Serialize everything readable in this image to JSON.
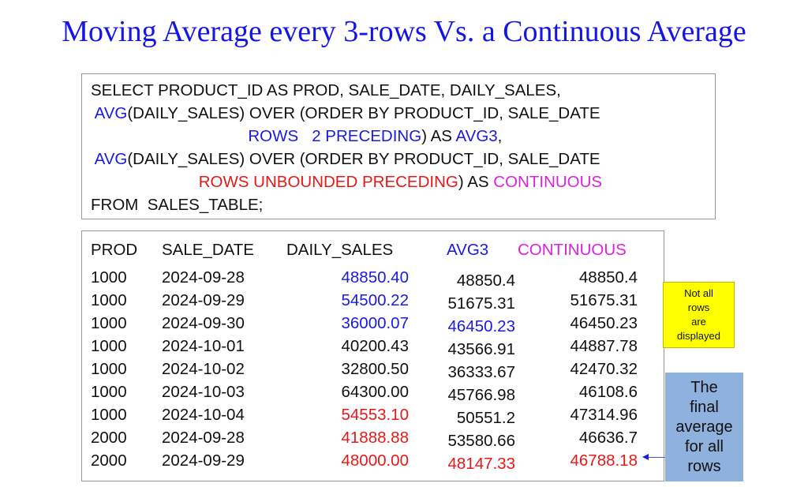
{
  "title": "Moving Average every 3-rows Vs. a Continuous Average",
  "sql": [
    [
      {
        "t": "SELECT PRODUCT_ID AS PROD, SALE_DATE, DAILY_SALES,",
        "c": "black"
      }
    ],
    [
      {
        "t": " AVG",
        "c": "blue"
      },
      {
        "t": "(DAILY_SALES) OVER (ORDER BY PRODUCT_ID, SALE_DATE",
        "c": "black"
      }
    ],
    [
      {
        "t": "                                   ROWS   2 PRECEDING",
        "c": "blue"
      },
      {
        "t": ") AS ",
        "c": "black"
      },
      {
        "t": "AVG3",
        "c": "blue"
      },
      {
        "t": ",",
        "c": "black"
      }
    ],
    [
      {
        "t": " AVG",
        "c": "blue"
      },
      {
        "t": "(DAILY_SALES) OVER (ORDER BY PRODUCT_ID, SALE_DATE",
        "c": "black"
      }
    ],
    [
      {
        "t": "                        ROWS UNBOUNDED PRECEDING",
        "c": "red"
      },
      {
        "t": ") AS ",
        "c": "black"
      },
      {
        "t": "CONTINUOUS",
        "c": "mag"
      }
    ],
    [
      {
        "t": "FROM  SALES_TABLE;",
        "c": "black"
      }
    ]
  ],
  "table": {
    "headers": [
      {
        "t": "PROD",
        "c": "black"
      },
      {
        "t": "SALE_DATE",
        "c": "black"
      },
      {
        "t": "DAILY_SALES",
        "c": "black"
      },
      {
        "t": "AVG3",
        "c": "blue"
      },
      {
        "t": "CONTINUOUS",
        "c": "mag"
      }
    ],
    "rows": [
      {
        "prod": "1000",
        "date": "2024-09-28",
        "sales": "48850.40",
        "sc": "blue",
        "avg3": "48850.4",
        "ac": "black",
        "cont": "48850.4",
        "cc": "black"
      },
      {
        "prod": "1000",
        "date": "2024-09-29",
        "sales": "54500.22",
        "sc": "blue",
        "avg3": "51675.31",
        "ac": "black",
        "cont": "51675.31",
        "cc": "black"
      },
      {
        "prod": "1000",
        "date": "2024-09-30",
        "sales": "36000.07",
        "sc": "blue",
        "avg3": "46450.23",
        "ac": "blue",
        "cont": "46450.23",
        "cc": "black"
      },
      {
        "prod": "1000",
        "date": "2024-10-01",
        "sales": "40200.43",
        "sc": "black",
        "avg3": "43566.91",
        "ac": "black",
        "cont": "44887.78",
        "cc": "black"
      },
      {
        "prod": "1000",
        "date": "2024-10-02",
        "sales": "32800.50",
        "sc": "black",
        "avg3": "36333.67",
        "ac": "black",
        "cont": "42470.32",
        "cc": "black"
      },
      {
        "prod": "1000",
        "date": "2024-10-03",
        "sales": "64300.00",
        "sc": "black",
        "avg3": "45766.98",
        "ac": "black",
        "cont": "46108.6",
        "cc": "black"
      },
      {
        "prod": "1000",
        "date": "2024-10-04",
        "sales": "54553.10",
        "sc": "red",
        "avg3": "50551.2",
        "ac": "black",
        "cont": "47314.96",
        "cc": "black"
      },
      {
        "prod": "2000",
        "date": "2024-09-28",
        "sales": "41888.88",
        "sc": "red",
        "avg3": "53580.66",
        "ac": "black",
        "cont": "46636.7",
        "cc": "black"
      },
      {
        "prod": "2000",
        "date": "2024-09-29",
        "sales": "48000.00",
        "sc": "red",
        "avg3": "48147.33",
        "ac": "red",
        "cont": "46788.18",
        "cc": "red"
      }
    ]
  },
  "notes": {
    "not_all": [
      "Not all",
      "rows",
      "are",
      "displayed"
    ],
    "final": [
      "The",
      "final",
      "average",
      "for all",
      "rows"
    ]
  },
  "colors": {
    "blue": "#1a1ae0",
    "red": "#e81818",
    "magenta": "#e020e0",
    "yellow_note": "#ffff00",
    "blue_note": "#8fb1de"
  }
}
